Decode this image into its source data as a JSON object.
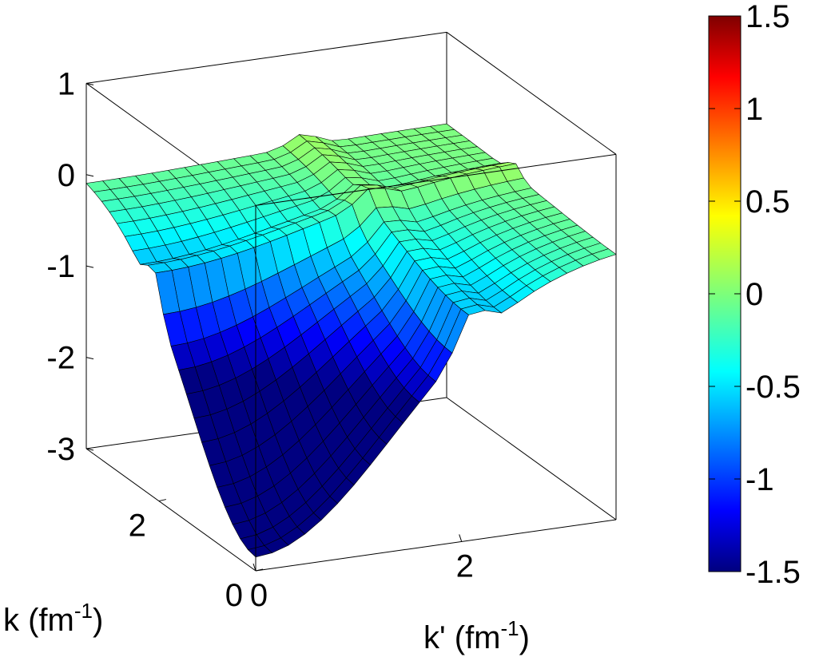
{
  "chart_data": {
    "type": "surface",
    "colormap": "jet",
    "shading": "faceted (black mesh lines)",
    "grid": "off",
    "xlabel_base": "k' (fm",
    "xlabel_sup": "-1",
    "xlabel_close": ")",
    "ylabel_base": "k (fm",
    "ylabel_sup": "-1",
    "ylabel_close": ")",
    "xlim": [
      0,
      3.5
    ],
    "ylim": [
      0,
      3.5
    ],
    "zlim": [
      -3,
      1
    ],
    "x_ticks": [
      "0",
      "2"
    ],
    "y_ticks": [
      "0",
      "2"
    ],
    "z_ticks": [
      "1",
      "0",
      "-1",
      "-2",
      "-3"
    ],
    "colorbar": {
      "position": "right",
      "range": [
        -1.5,
        1.5
      ],
      "tick_labels": [
        "1.5",
        "1",
        "0.5",
        "0",
        "-0.5",
        "-1",
        "-1.5"
      ]
    },
    "surface": {
      "grid_points": 22,
      "min_value": -2.85,
      "min_location": [
        0,
        0
      ],
      "plateau_value": 0,
      "ridge_peak_value": 0.35,
      "ridge_location_k": 2.1,
      "ridge_location_k_prime": 2.1
    }
  }
}
